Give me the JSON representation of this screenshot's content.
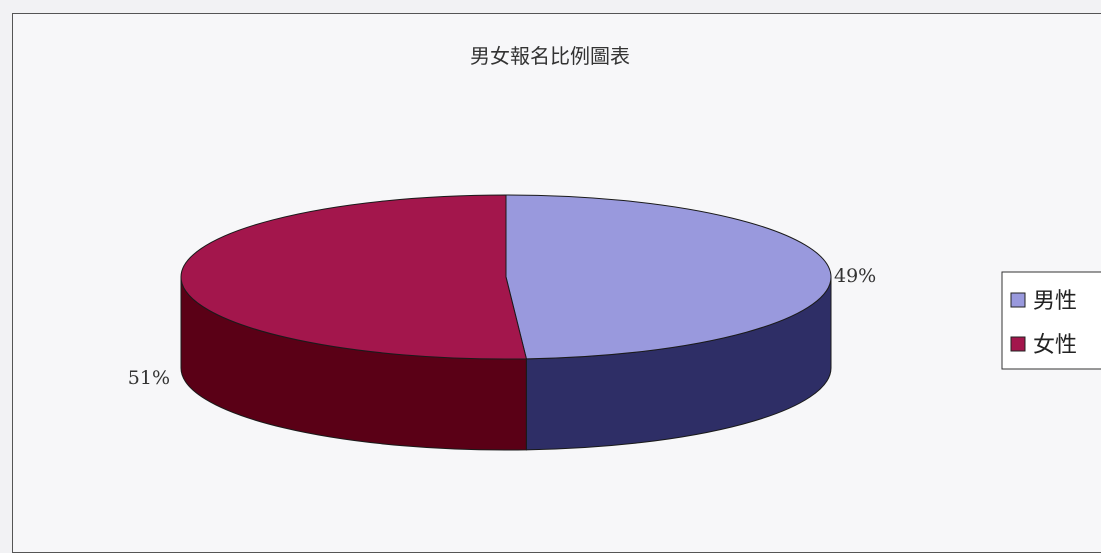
{
  "chart_data": {
    "type": "pie",
    "title": "男女報名比例圖表",
    "slices": [
      {
        "name": "男性",
        "value": 49,
        "label": "49%",
        "color": "#9999dd",
        "side_color": "#2e2e66"
      },
      {
        "name": "女性",
        "value": 51,
        "label": "51%",
        "color": "#a3164c",
        "side_color": "#5a0016"
      }
    ],
    "legend_position": "right",
    "style": "3d"
  }
}
